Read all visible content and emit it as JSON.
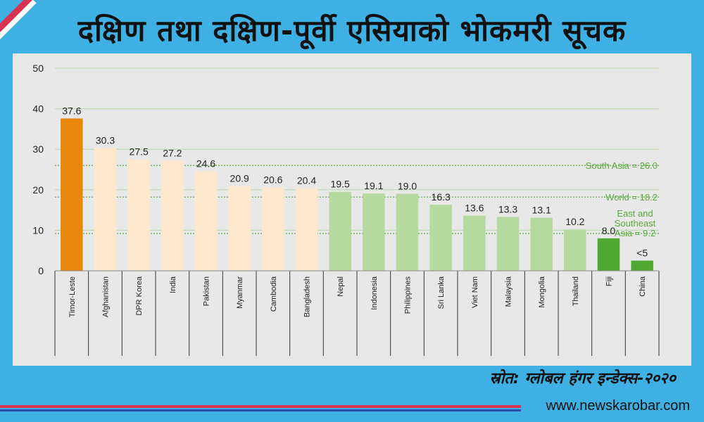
{
  "header": {
    "title": "दक्षिण तथा दक्षिण-पूर्वी एसियाको भोकमरी सूचक"
  },
  "footer": {
    "source": "स्रोत: ग्लोबल हंगर इन्डेक्स-२०२०",
    "website": "www.newskarobar.com"
  },
  "colors": {
    "highlight": "#e8870c",
    "south_asia": "#fde7cf",
    "southeast_asia": "#b6d9a0",
    "highlight_green": "#4fa832",
    "reference_line": "#5aa83c"
  },
  "chart_data": {
    "type": "bar",
    "ylim": [
      0,
      50
    ],
    "yticks": [
      0,
      10,
      20,
      30,
      40,
      50
    ],
    "grid": true,
    "categories": [
      "Timor-Leste",
      "Afghanistan",
      "DPR Korea",
      "India",
      "Pakistan",
      "Myanmar",
      "Cambodia",
      "Bangladesh",
      "Nepal",
      "Indonesia",
      "Philippines",
      "Sri Lanka",
      "Viet Nam",
      "Malaysia",
      "Mongolia",
      "Thailand",
      "Fiji",
      "China"
    ],
    "values": [
      37.6,
      30.3,
      27.5,
      27.2,
      24.6,
      20.9,
      20.6,
      20.4,
      19.5,
      19.1,
      19.0,
      16.3,
      13.6,
      13.3,
      13.1,
      10.2,
      8.0,
      2.5
    ],
    "labels": [
      "37.6",
      "30.3",
      "27.5",
      "27.2",
      "24.6",
      "20.9",
      "20.6",
      "20.4",
      "19.5",
      "19.1",
      "19.0",
      "16.3",
      "13.6",
      "13.3",
      "13.1",
      "10.2",
      "8.0",
      "<5"
    ],
    "bar_colors": [
      "highlight",
      "south_asia",
      "south_asia",
      "south_asia",
      "south_asia",
      "south_asia",
      "south_asia",
      "south_asia",
      "southeast_asia",
      "southeast_asia",
      "southeast_asia",
      "southeast_asia",
      "southeast_asia",
      "southeast_asia",
      "southeast_asia",
      "southeast_asia",
      "highlight_green",
      "highlight_green"
    ],
    "reference_lines": [
      {
        "value": 26.0,
        "label": [
          "South Asia = 26.0"
        ]
      },
      {
        "value": 18.2,
        "label": [
          "World = 18.2"
        ]
      },
      {
        "value": 9.2,
        "label": [
          "East and",
          "Southeast",
          "Asia = 9.2"
        ]
      }
    ]
  }
}
